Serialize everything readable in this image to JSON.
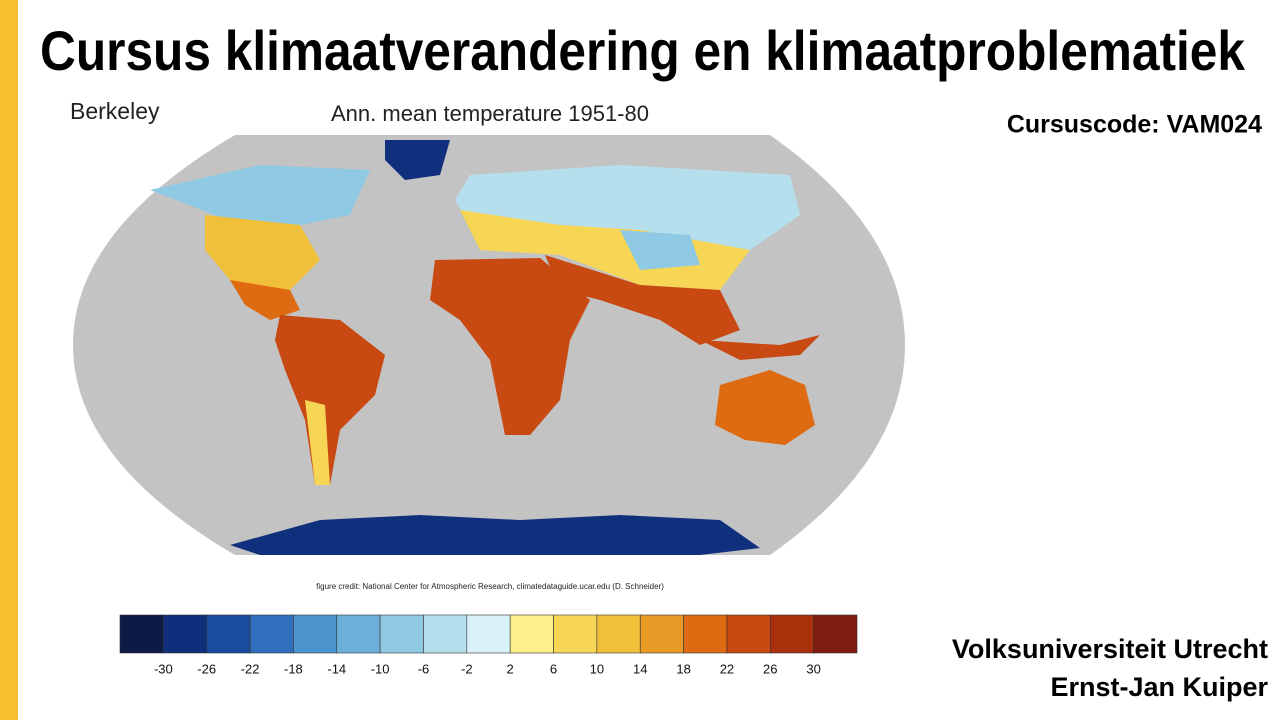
{
  "slide": {
    "title": "Cursus klimaatverandering en klimaatproblematiek",
    "course_code": "Cursuscode: VAM024",
    "figure": {
      "source_label": "Berkeley",
      "title": "Ann. mean temperature 1951-80",
      "credit": "figure credit: National Center for Atmospheric Research, climatedataguide.ucar.edu (D. Schneider)",
      "colorbar": {
        "colors": [
          "#0c1a45",
          "#0f2f7c",
          "#1a4d9e",
          "#2f6fbb",
          "#4b93cc",
          "#6cb0da",
          "#8fc9e3",
          "#b6dfee",
          "#d9f1f9",
          "#fdf08a",
          "#f8d655",
          "#f1c03a",
          "#e89a27",
          "#de6a12",
          "#c94912",
          "#a8300b",
          "#7e1e10"
        ],
        "labels": [
          -30,
          -26,
          -22,
          -18,
          -14,
          -10,
          -6,
          -2,
          2,
          6,
          10,
          14,
          18,
          22,
          26,
          30
        ]
      }
    },
    "organization": "Volksuniversiteit Utrecht",
    "author": "Ernst-Jan Kuiper"
  }
}
